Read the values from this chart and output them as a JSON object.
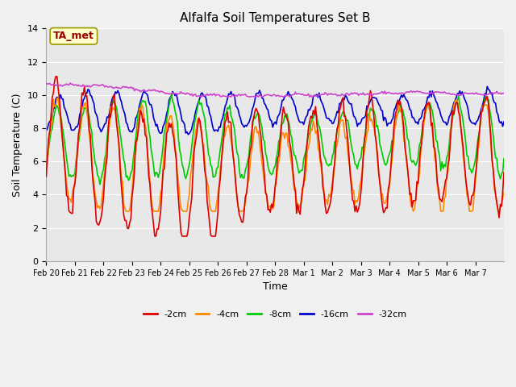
{
  "title": "Alfalfa Soil Temperatures Set B",
  "xlabel": "Time",
  "ylabel": "Soil Temperature (C)",
  "ylim": [
    0,
    14
  ],
  "xlim": [
    0,
    384
  ],
  "plot_bg_color": "#e8e8e8",
  "fig_bg_color": "#f0f0f0",
  "annotation_text": "TA_met",
  "annotation_color": "#990000",
  "annotation_box_facecolor": "#ffffcc",
  "annotation_box_edgecolor": "#999900",
  "series_colors": {
    "-2cm": "#dd0000",
    "-4cm": "#ff8800",
    "-8cm": "#00cc00",
    "-16cm": "#0000cc",
    "-32cm": "#cc44cc"
  },
  "x_tick_labels": [
    "Feb 20",
    "Feb 21",
    "Feb 22",
    "Feb 23",
    "Feb 24",
    "Feb 25",
    "Feb 26",
    "Feb 27",
    "Feb 28",
    "Mar 1",
    "Mar 2",
    "Mar 3",
    "Mar 4",
    "Mar 5",
    "Mar 6",
    "Mar 7"
  ],
  "x_tick_positions": [
    0,
    24,
    48,
    72,
    96,
    120,
    144,
    168,
    192,
    216,
    240,
    264,
    288,
    312,
    336,
    360
  ],
  "y_ticks": [
    0,
    2,
    4,
    6,
    8,
    10,
    12,
    14
  ],
  "grid_color": "#ffffff",
  "line_width": 1.2,
  "title_fontsize": 11,
  "tick_fontsize": 7,
  "label_fontsize": 9,
  "legend_fontsize": 8
}
